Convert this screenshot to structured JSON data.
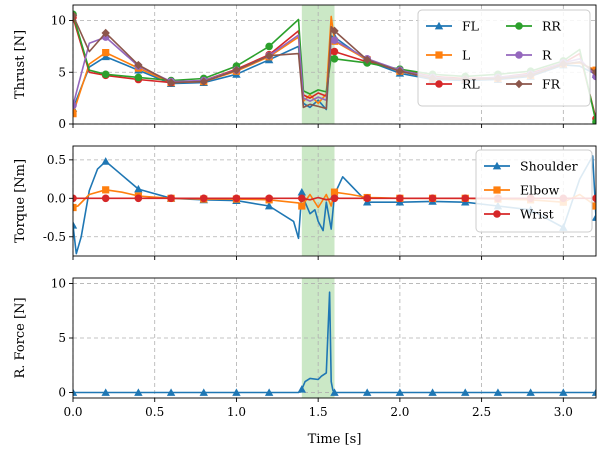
{
  "colors": {
    "highlight": "#a8d8a0",
    "grid": "#b0b0b0"
  },
  "chart_data": [
    {
      "type": "line",
      "ylabel": "Thrust [N]",
      "xlim": [
        0,
        3.2
      ],
      "ylim": [
        0,
        11.5
      ],
      "yticks": [
        0,
        5,
        10
      ],
      "xticks": [
        0,
        0.5,
        1.0,
        1.5,
        2.0,
        2.5,
        3.0
      ],
      "grid": true,
      "shaded_region": [
        1.4,
        1.6
      ],
      "legend": {
        "position": "top-right",
        "columns": 2
      },
      "series": [
        {
          "name": "FL",
          "color": "#1f77b4",
          "marker": "triangle",
          "x": [
            0,
            0.1,
            0.2,
            0.4,
            0.6,
            0.8,
            1.0,
            1.2,
            1.38,
            1.41,
            1.45,
            1.5,
            1.55,
            1.58,
            1.6,
            1.8,
            2.0,
            2.2,
            2.4,
            2.6,
            2.8,
            3.0,
            3.1,
            3.2
          ],
          "y": [
            1.5,
            5.5,
            6.5,
            5.2,
            3.9,
            4.0,
            4.8,
            6.2,
            7.5,
            2.0,
            1.6,
            2.3,
            1.4,
            8.5,
            8.4,
            6.1,
            4.9,
            4.3,
            4.2,
            4.3,
            4.6,
            5.7,
            5.6,
            4.8
          ]
        },
        {
          "name": "L",
          "color": "#ff7f0e",
          "marker": "square",
          "x": [
            0,
            0.1,
            0.2,
            0.4,
            0.6,
            0.8,
            1.0,
            1.2,
            1.38,
            1.41,
            1.45,
            1.5,
            1.55,
            1.58,
            1.6,
            1.8,
            2.0,
            2.2,
            2.4,
            2.6,
            2.8,
            3.0,
            3.1,
            3.2
          ],
          "y": [
            1.0,
            5.8,
            6.9,
            5.4,
            4.0,
            4.1,
            5.1,
            6.5,
            8.4,
            2.2,
            2.8,
            2.0,
            2.9,
            10.4,
            8.0,
            6.2,
            5.1,
            4.4,
            4.3,
            4.4,
            4.7,
            5.8,
            5.9,
            5.2
          ]
        },
        {
          "name": "RL",
          "color": "#d62728",
          "marker": "circle",
          "x": [
            0,
            0.1,
            0.2,
            0.4,
            0.6,
            0.8,
            1.0,
            1.2,
            1.38,
            1.41,
            1.45,
            1.5,
            1.55,
            1.58,
            1.6,
            1.8,
            2.0,
            2.2,
            2.4,
            2.6,
            2.8,
            3.0,
            3.1,
            3.2
          ],
          "y": [
            10.3,
            5.0,
            4.7,
            4.3,
            4.0,
            4.2,
            5.3,
            6.7,
            9.0,
            2.8,
            2.5,
            3.0,
            2.7,
            7.2,
            7.0,
            6.0,
            5.2,
            4.6,
            4.4,
            4.5,
            4.9,
            5.9,
            6.8,
            0.5
          ]
        },
        {
          "name": "RR",
          "color": "#2ca02c",
          "marker": "circle",
          "x": [
            0,
            0.1,
            0.2,
            0.4,
            0.6,
            0.8,
            1.0,
            1.2,
            1.38,
            1.41,
            1.45,
            1.5,
            1.55,
            1.58,
            1.6,
            1.8,
            2.0,
            2.2,
            2.4,
            2.6,
            2.8,
            3.0,
            3.1,
            3.2
          ],
          "y": [
            10.6,
            5.2,
            4.8,
            4.5,
            4.2,
            4.4,
            5.6,
            7.5,
            10.1,
            3.2,
            2.9,
            3.3,
            3.1,
            6.5,
            6.3,
            5.9,
            5.3,
            4.8,
            4.6,
            4.8,
            5.1,
            6.1,
            7.2,
            0.2
          ]
        },
        {
          "name": "R",
          "color": "#9467bd",
          "marker": "circle",
          "x": [
            0,
            0.1,
            0.2,
            0.4,
            0.6,
            0.8,
            1.0,
            1.2,
            1.38,
            1.41,
            1.45,
            1.5,
            1.55,
            1.58,
            1.6,
            1.8,
            2.0,
            2.2,
            2.4,
            2.6,
            2.8,
            3.0,
            3.1,
            3.2
          ],
          "y": [
            1.8,
            7.8,
            8.4,
            5.6,
            4.1,
            4.2,
            5.2,
            6.6,
            8.6,
            2.5,
            2.2,
            2.6,
            2.3,
            8.2,
            8.1,
            6.3,
            5.2,
            4.5,
            4.3,
            4.5,
            4.8,
            5.9,
            6.3,
            4.6
          ]
        },
        {
          "name": "FR",
          "color": "#8c564b",
          "marker": "diamond",
          "x": [
            0,
            0.1,
            0.2,
            0.4,
            0.6,
            0.8,
            1.0,
            1.2,
            1.38,
            1.41,
            1.45,
            1.5,
            1.55,
            1.58,
            1.6,
            1.8,
            2.0,
            2.2,
            2.4,
            2.6,
            2.8,
            3.0,
            3.1,
            3.2
          ],
          "y": [
            10.5,
            7.0,
            8.8,
            5.7,
            4.0,
            4.1,
            5.2,
            6.6,
            6.8,
            1.6,
            1.9,
            1.7,
            1.5,
            9.4,
            9.0,
            6.2,
            5.1,
            4.4,
            4.3,
            4.4,
            4.7,
            5.8,
            6.0,
            5.0
          ]
        }
      ]
    },
    {
      "type": "line",
      "ylabel": "Torque [Nm]",
      "xlim": [
        0,
        3.2
      ],
      "ylim": [
        -0.75,
        0.68
      ],
      "yticks": [
        -0.5,
        0.0,
        0.5
      ],
      "xticks": [
        0,
        0.5,
        1.0,
        1.5,
        2.0,
        2.5,
        3.0
      ],
      "grid": true,
      "shaded_region": [
        1.4,
        1.6
      ],
      "legend": {
        "position": "top-right",
        "columns": 1
      },
      "series": [
        {
          "name": "Shoulder",
          "color": "#1f77b4",
          "marker": "triangle",
          "x": [
            0,
            0.02,
            0.05,
            0.1,
            0.15,
            0.2,
            0.3,
            0.4,
            0.6,
            0.8,
            1.0,
            1.2,
            1.35,
            1.38,
            1.4,
            1.42,
            1.45,
            1.48,
            1.5,
            1.53,
            1.55,
            1.58,
            1.6,
            1.65,
            1.8,
            2.0,
            2.2,
            2.4,
            2.6,
            2.8,
            3.0,
            3.1,
            3.18,
            3.2
          ],
          "y": [
            -0.35,
            -0.72,
            -0.5,
            0.1,
            0.38,
            0.48,
            0.3,
            0.12,
            0.0,
            -0.02,
            -0.03,
            -0.1,
            -0.3,
            -0.52,
            0.08,
            -0.05,
            -0.2,
            -0.15,
            -0.3,
            -0.42,
            -0.05,
            -0.4,
            0.05,
            0.28,
            -0.05,
            -0.05,
            -0.04,
            -0.05,
            -0.1,
            -0.15,
            -0.38,
            0.25,
            0.55,
            -0.25
          ]
        },
        {
          "name": "Elbow",
          "color": "#ff7f0e",
          "marker": "square",
          "x": [
            0,
            0.03,
            0.1,
            0.2,
            0.3,
            0.4,
            0.6,
            0.8,
            1.0,
            1.2,
            1.38,
            1.4,
            1.45,
            1.5,
            1.55,
            1.58,
            1.6,
            1.7,
            1.8,
            2.0,
            2.2,
            2.4,
            2.6,
            2.8,
            3.0,
            3.1,
            3.2
          ],
          "y": [
            -0.12,
            -0.1,
            0.05,
            0.11,
            0.08,
            0.03,
            0.0,
            -0.01,
            -0.01,
            -0.02,
            -0.06,
            -0.1,
            0.05,
            -0.12,
            0.05,
            -0.1,
            0.08,
            0.05,
            0.01,
            0.0,
            0.0,
            0.0,
            -0.01,
            -0.02,
            -0.05,
            0.05,
            -0.1
          ]
        },
        {
          "name": "Wrist",
          "color": "#d62728",
          "marker": "circle",
          "x": [
            0,
            0.2,
            0.4,
            0.6,
            0.8,
            1.0,
            1.2,
            1.4,
            1.45,
            1.5,
            1.55,
            1.6,
            1.8,
            2.0,
            2.2,
            2.4,
            2.6,
            2.8,
            3.0,
            3.2
          ],
          "y": [
            0.0,
            0.0,
            0.0,
            0.0,
            0.0,
            0.0,
            0.0,
            0.0,
            -0.02,
            0.01,
            -0.02,
            0.0,
            0.0,
            0.0,
            0.0,
            0.0,
            0.0,
            0.0,
            0.0,
            0.0
          ]
        }
      ]
    },
    {
      "type": "line",
      "ylabel": "R. Force [N]",
      "xlabel": "Time [s]",
      "xlim": [
        0,
        3.2
      ],
      "ylim": [
        -0.5,
        10.5
      ],
      "yticks": [
        0,
        5,
        10
      ],
      "xticks": [
        0,
        0.5,
        1.0,
        1.5,
        2.0,
        2.5,
        3.0
      ],
      "xticklabels": [
        "0.0",
        "0.5",
        "1.0",
        "1.5",
        "2.0",
        "2.5",
        "3.0"
      ],
      "grid": true,
      "shaded_region": [
        1.4,
        1.6
      ],
      "series": [
        {
          "color": "#1f77b4",
          "marker": "triangle",
          "x": [
            0,
            0.2,
            0.4,
            0.6,
            0.8,
            1.0,
            1.2,
            1.38,
            1.4,
            1.42,
            1.45,
            1.5,
            1.52,
            1.55,
            1.57,
            1.58,
            1.59,
            1.6,
            1.8,
            2.0,
            2.2,
            2.4,
            2.6,
            2.8,
            3.0,
            3.2
          ],
          "y": [
            0,
            0,
            0,
            0,
            0,
            0,
            0,
            0,
            0.3,
            1.0,
            1.3,
            1.2,
            1.5,
            1.8,
            9.2,
            1.0,
            0.2,
            0,
            0,
            0,
            0,
            0,
            0,
            0,
            0,
            0
          ]
        }
      ]
    }
  ]
}
